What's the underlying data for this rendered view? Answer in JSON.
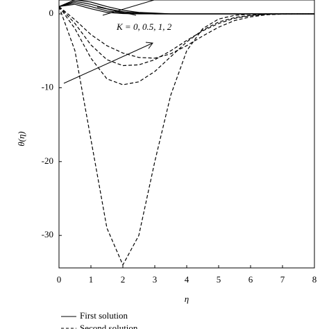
{
  "chart_data": {
    "type": "line",
    "y_label": "θ(η)",
    "x_label": "η",
    "annotation": "K = 0, 0.5, 1, 2",
    "x": [
      0,
      0.5,
      1,
      1.5,
      2,
      2.5,
      3,
      3.5,
      4,
      4.5,
      5,
      5.5,
      6,
      6.5,
      7,
      7.5,
      8
    ],
    "series": [
      {
        "name": "First solution",
        "dash": "solid",
        "color": "#000000",
        "curves": [
          [
            1,
            1.9,
            1.6,
            1.0,
            0.5,
            0.2,
            0.1,
            0,
            0,
            0,
            0,
            0,
            0,
            0,
            0,
            0,
            0
          ],
          [
            1,
            1.7,
            1.3,
            0.7,
            0.3,
            0.1,
            0,
            0,
            0,
            0,
            0,
            0,
            0,
            0,
            0,
            0,
            0
          ],
          [
            1,
            1.5,
            1.0,
            0.4,
            0.15,
            0.05,
            0,
            0,
            0,
            0,
            0,
            0,
            0,
            0,
            0,
            0,
            0
          ],
          [
            1,
            1.3,
            0.7,
            0.2,
            0.05,
            0,
            0,
            0,
            0,
            0,
            0,
            0,
            0,
            0,
            0,
            0,
            0
          ]
        ]
      },
      {
        "name": "Second solution",
        "dash": "dashed",
        "color": "#000000",
        "curves": [
          [
            1,
            -5,
            -17,
            -29,
            -34,
            -30,
            -20,
            -11,
            -5,
            -2,
            -0.7,
            -0.2,
            -0.05,
            0,
            0,
            0,
            0
          ],
          [
            1,
            -2,
            -6,
            -8.8,
            -9.6,
            -9.2,
            -7.8,
            -5.8,
            -3.8,
            -2.2,
            -1.1,
            -0.5,
            -0.2,
            -0.05,
            0,
            0,
            0
          ],
          [
            1,
            -1.3,
            -4.2,
            -6.2,
            -7,
            -6.9,
            -6.2,
            -5,
            -3.6,
            -2.3,
            -1.3,
            -0.6,
            -0.25,
            -0.08,
            0,
            0,
            0
          ],
          [
            1,
            -0.8,
            -2.8,
            -4.3,
            -5.3,
            -5.9,
            -6,
            -5.4,
            -4.3,
            -3,
            -1.8,
            -0.9,
            -0.4,
            -0.12,
            -0.03,
            0,
            0
          ]
        ]
      }
    ],
    "xlim": [
      0,
      8
    ],
    "xticks": [
      0,
      1,
      2,
      3,
      4,
      5,
      6,
      7,
      8
    ],
    "ylim": [
      -34.4,
      1.88
    ],
    "yticks": [
      -30,
      -20,
      -10,
      0
    ]
  }
}
